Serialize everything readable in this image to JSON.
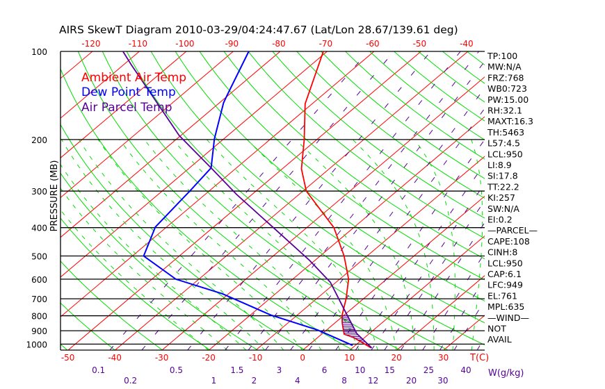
{
  "chart_data": {
    "type": "line",
    "subtype": "skew-t log-p",
    "title": "AIRS SkewT Diagram 2010-03-29/04:24:47.67 (Lat/Lon 28.67/139.61 deg)",
    "ylabel": "PRESSURE (MB)",
    "xlabel": "T(C)",
    "mixing_ratio_label": "W(g/kg)",
    "ylim": [
      1050,
      100
    ],
    "pressure_ticks": [
      100,
      200,
      300,
      400,
      500,
      600,
      700,
      800,
      900,
      1000
    ],
    "top_temp_ticks": [
      -120,
      -110,
      -100,
      -90,
      -80,
      -70,
      -60,
      -50,
      -40
    ],
    "bottom_temp_ticks": [
      -50,
      -40,
      -30,
      -20,
      -10,
      0,
      10,
      20,
      30
    ],
    "mixing_ratio_ticks": [
      "0.1",
      "0.2",
      "0.5",
      "1",
      "1.5",
      "2",
      "3",
      "4",
      "6",
      "8",
      "10",
      "12",
      "15",
      "20",
      "25",
      "30",
      "40"
    ],
    "legend": [
      {
        "label": "Ambient Air Temp",
        "color": "#ff0000"
      },
      {
        "label": "Dew Point Temp",
        "color": "#0000ff"
      },
      {
        "label": "Air Parcel Temp",
        "color": "#550099"
      }
    ],
    "legend_placement": "top-left",
    "series": [
      {
        "name": "Ambient Air Temp",
        "color": "#ff0000",
        "p": [
          100,
          151,
          200,
          252,
          300,
          400,
          500,
          600,
          700,
          800,
          850,
          925,
          950,
          1030
        ],
        "t": [
          -70.8,
          -61.5,
          -52.7,
          -45.9,
          -39.3,
          -24.2,
          -14.9,
          -8.1,
          -3.7,
          -0.3,
          1.7,
          4.8,
          7.7,
          14.0
        ]
      },
      {
        "name": "Dew Point Temp",
        "color": "#0000ff",
        "p": [
          100,
          141,
          150,
          199,
          250,
          300,
          398,
          500,
          600,
          673,
          795,
          895,
          1010
        ],
        "t": [
          -86.7,
          -80.3,
          -79.1,
          -72.0,
          -65.4,
          -64.1,
          -62.4,
          -57.6,
          -44.9,
          -31.3,
          -15.7,
          -1.9,
          9.4
        ]
      },
      {
        "name": "Air Parcel Temp",
        "color": "#550099",
        "p": [
          100,
          111,
          194,
          250,
          308,
          400,
          518,
          615,
          760,
          920,
          1030
        ],
        "t": [
          -113.5,
          -108.4,
          -80.3,
          -65.4,
          -53.3,
          -37.1,
          -21.1,
          -11.2,
          -1.5,
          7.3,
          14.1
        ]
      }
    ],
    "cin_hatch_p_range": [
      800,
      990
    ],
    "grid": true
  },
  "stats": [
    "TP:100",
    "MW:N/A",
    "FRZ:768",
    "WB0:723",
    "PW:15.00",
    "RH:32.1",
    "MAXT:16.3",
    "TH:5463",
    "L57:4.5",
    "LCL:950",
    "LI:8.9",
    "SI:17.8",
    "TT:22.2",
    "KI:257",
    "SW:N/A",
    "EI:0.2",
    "—PARCEL—",
    "CAPE:108",
    "CINH:8",
    "LCL:950",
    "CAP:6.1",
    "LFC:949",
    "EL:761",
    "MPL:635",
    "—WIND—",
    "NOT",
    "AVAIL"
  ],
  "colors": {
    "isotherm": "#ff0000",
    "dry_adiabat": "#00dd00",
    "moist_adiabat": "#00dd00",
    "mixing_ratio": "#550099",
    "axis": "#000000"
  }
}
